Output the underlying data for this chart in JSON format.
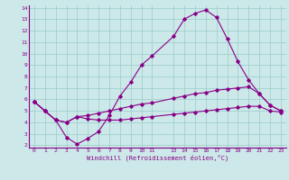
{
  "xlabel": "Windchill (Refroidissement éolien,°C)",
  "bg_color": "#cce8e8",
  "line_color": "#880088",
  "grid_color": "#99cccc",
  "xlim": [
    -0.5,
    23.5
  ],
  "ylim": [
    1.8,
    14.2
  ],
  "xticks": [
    0,
    1,
    2,
    3,
    4,
    5,
    6,
    7,
    8,
    9,
    10,
    11,
    13,
    14,
    15,
    16,
    17,
    18,
    19,
    20,
    21,
    22,
    23
  ],
  "yticks": [
    2,
    3,
    4,
    5,
    6,
    7,
    8,
    9,
    10,
    11,
    12,
    13,
    14
  ],
  "line_spiky_x": [
    0,
    1,
    2,
    3,
    4,
    5,
    6,
    7,
    8,
    9,
    10,
    11,
    13,
    14,
    15,
    16,
    17,
    18,
    19,
    20,
    21,
    22,
    23
  ],
  "line_spiky_y": [
    5.8,
    5.0,
    4.2,
    2.7,
    2.1,
    2.6,
    3.2,
    4.6,
    6.3,
    7.5,
    9.0,
    9.8,
    11.5,
    13.0,
    13.5,
    13.8,
    13.15,
    11.3,
    9.3,
    7.7,
    6.5,
    5.5,
    5.0
  ],
  "line_upper_x": [
    0,
    1,
    2,
    3,
    4,
    5,
    6,
    7,
    8,
    9,
    10,
    11,
    13,
    14,
    15,
    16,
    17,
    18,
    19,
    20,
    21,
    22,
    23
  ],
  "line_upper_y": [
    5.8,
    5.0,
    4.2,
    4.0,
    4.5,
    4.6,
    4.8,
    5.0,
    5.2,
    5.4,
    5.6,
    5.7,
    6.1,
    6.3,
    6.5,
    6.6,
    6.8,
    6.9,
    7.0,
    7.1,
    6.5,
    5.5,
    5.0
  ],
  "line_lower_x": [
    0,
    1,
    2,
    3,
    4,
    5,
    6,
    7,
    8,
    9,
    10,
    11,
    13,
    14,
    15,
    16,
    17,
    18,
    19,
    20,
    21,
    22,
    23
  ],
  "line_lower_y": [
    5.8,
    5.0,
    4.2,
    4.0,
    4.5,
    4.3,
    4.2,
    4.2,
    4.2,
    4.3,
    4.4,
    4.5,
    4.7,
    4.8,
    4.9,
    5.0,
    5.1,
    5.2,
    5.3,
    5.4,
    5.4,
    5.0,
    4.9
  ]
}
